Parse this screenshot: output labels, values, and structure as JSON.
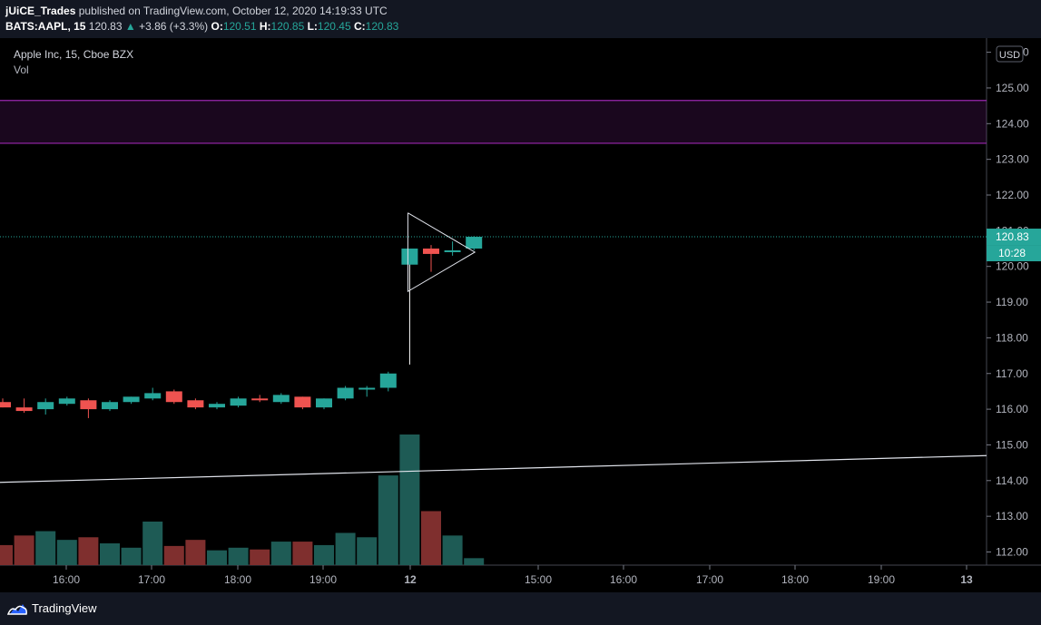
{
  "header": {
    "user": "jUiCE_Trades",
    "published": "published on TradingView.com, October 12, 2020 14:19:33 UTC",
    "symbol": "BATS:AAPL, 15",
    "last": "120.83",
    "arrow": "▲",
    "change": "+3.86 (+3.3%)",
    "o_label": "O:",
    "o": "120.51",
    "h_label": "H:",
    "h": "120.85",
    "l_label": "L:",
    "l": "120.45",
    "c_label": "C:",
    "c": "120.83"
  },
  "legend": {
    "title": "Apple Inc, 15, Cboe BZX",
    "vol": "Vol"
  },
  "price_scale": {
    "currency": "USD",
    "last_price": "120.83",
    "countdown": "10:28"
  },
  "footer": {
    "brand": "TradingView"
  },
  "colors": {
    "up": "#26a69a",
    "down": "#ef5350",
    "vol_up": "#1e5b55",
    "vol_down": "#7f2f2e",
    "zone": "#9c27b0",
    "background": "#000000"
  },
  "chart_data": {
    "type": "candlestick",
    "y_ticks": [
      "112.00",
      "113.00",
      "114.00",
      "115.00",
      "116.00",
      "117.00",
      "118.00",
      "119.00",
      "120.00",
      "121.00",
      "122.00",
      "123.00",
      "124.00",
      "125.00",
      "126.00"
    ],
    "ylim": [
      111.6,
      126.1
    ],
    "x_ticks": [
      "16:00",
      "17:00",
      "18:00",
      "19:00",
      "12",
      "15:00",
      "16:00",
      "17:00",
      "18:00",
      "19:00",
      "13"
    ],
    "candles": [
      {
        "o": 116.2,
        "h": 116.3,
        "l": 116.05,
        "c": 116.05
      },
      {
        "o": 116.05,
        "h": 116.3,
        "l": 115.9,
        "c": 115.95
      },
      {
        "o": 116.0,
        "h": 116.3,
        "l": 115.85,
        "c": 116.2
      },
      {
        "o": 116.15,
        "h": 116.35,
        "l": 116.1,
        "c": 116.3
      },
      {
        "o": 116.25,
        "h": 116.3,
        "l": 115.75,
        "c": 116.0
      },
      {
        "o": 116.0,
        "h": 116.25,
        "l": 115.95,
        "c": 116.2
      },
      {
        "o": 116.2,
        "h": 116.35,
        "l": 116.15,
        "c": 116.35
      },
      {
        "o": 116.3,
        "h": 116.6,
        "l": 116.25,
        "c": 116.45
      },
      {
        "o": 116.5,
        "h": 116.55,
        "l": 116.15,
        "c": 116.2
      },
      {
        "o": 116.25,
        "h": 116.3,
        "l": 116.0,
        "c": 116.05
      },
      {
        "o": 116.05,
        "h": 116.2,
        "l": 116.0,
        "c": 116.15
      },
      {
        "o": 116.1,
        "h": 116.35,
        "l": 116.05,
        "c": 116.3
      },
      {
        "o": 116.3,
        "h": 116.4,
        "l": 116.2,
        "c": 116.25
      },
      {
        "o": 116.2,
        "h": 116.45,
        "l": 116.15,
        "c": 116.4
      },
      {
        "o": 116.35,
        "h": 116.35,
        "l": 116.0,
        "c": 116.05
      },
      {
        "o": 116.05,
        "h": 116.3,
        "l": 116.0,
        "c": 116.3
      },
      {
        "o": 116.3,
        "h": 116.65,
        "l": 116.25,
        "c": 116.6
      },
      {
        "o": 116.6,
        "h": 116.65,
        "l": 116.35,
        "c": 116.6
      },
      {
        "o": 116.6,
        "h": 117.05,
        "l": 116.5,
        "c": 117.0
      },
      {
        "o": 120.05,
        "h": 120.4,
        "l": 117.25,
        "c": 120.5
      },
      {
        "o": 120.5,
        "h": 120.6,
        "l": 119.85,
        "c": 120.35
      },
      {
        "o": 120.45,
        "h": 120.7,
        "l": 120.3,
        "c": 120.45
      },
      {
        "o": 120.5,
        "h": 120.85,
        "l": 120.45,
        "c": 120.83
      }
    ],
    "volume": [
      0.23,
      0.34,
      0.39,
      0.29,
      0.32,
      0.25,
      0.2,
      0.5,
      0.22,
      0.29,
      0.17,
      0.2,
      0.18,
      0.27,
      0.27,
      0.23,
      0.37,
      0.32,
      1.03,
      1.5,
      0.62,
      0.34,
      0.08
    ],
    "resistance_zone": [
      123.45,
      124.65
    ],
    "trendline": {
      "from": [
        0,
        113.95
      ],
      "to": [
        1,
        114.7
      ]
    },
    "pennant": {
      "top": 121.5,
      "bottom": 119.3,
      "apex": 120.4
    },
    "last_price": 120.83
  }
}
